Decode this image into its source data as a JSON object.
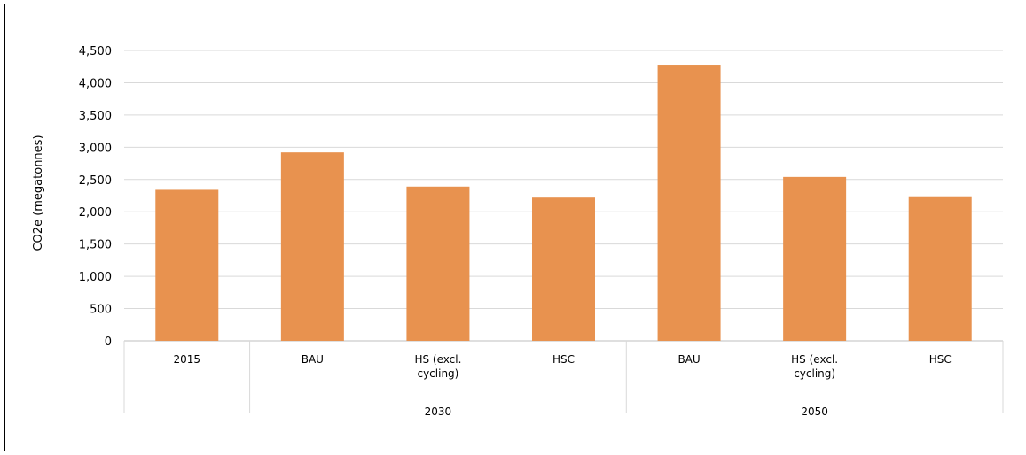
{
  "chart_data": {
    "type": "bar",
    "title": "",
    "xlabel": "",
    "ylabel": "CO2e (megatonnes)",
    "ylim": [
      0,
      4500
    ],
    "yticks": [
      0,
      500,
      1000,
      1500,
      2000,
      2500,
      3000,
      3500,
      4000,
      4500
    ],
    "ytick_labels": [
      "0",
      "500",
      "1,000",
      "1,500",
      "2,000",
      "2,500",
      "3,000",
      "3,500",
      "4,000",
      "4,500"
    ],
    "grid": true,
    "legend": "none",
    "bar_color": "#E8924F",
    "gridline_color": "#D9D9D9",
    "categories": [
      {
        "label": [
          "2015"
        ],
        "group": ""
      },
      {
        "label": [
          "BAU"
        ],
        "group": "2030"
      },
      {
        "label": [
          "HS (excl.",
          "cycling)"
        ],
        "group": "2030"
      },
      {
        "label": [
          "HSC"
        ],
        "group": "2030"
      },
      {
        "label": [
          "BAU"
        ],
        "group": "2050"
      },
      {
        "label": [
          "HS (excl.",
          "cycling)"
        ],
        "group": "2050"
      },
      {
        "label": [
          "HSC"
        ],
        "group": "2050"
      }
    ],
    "groups": [
      "2030",
      "2050"
    ],
    "values": [
      2340,
      2920,
      2390,
      2220,
      4280,
      2540,
      2240
    ]
  }
}
